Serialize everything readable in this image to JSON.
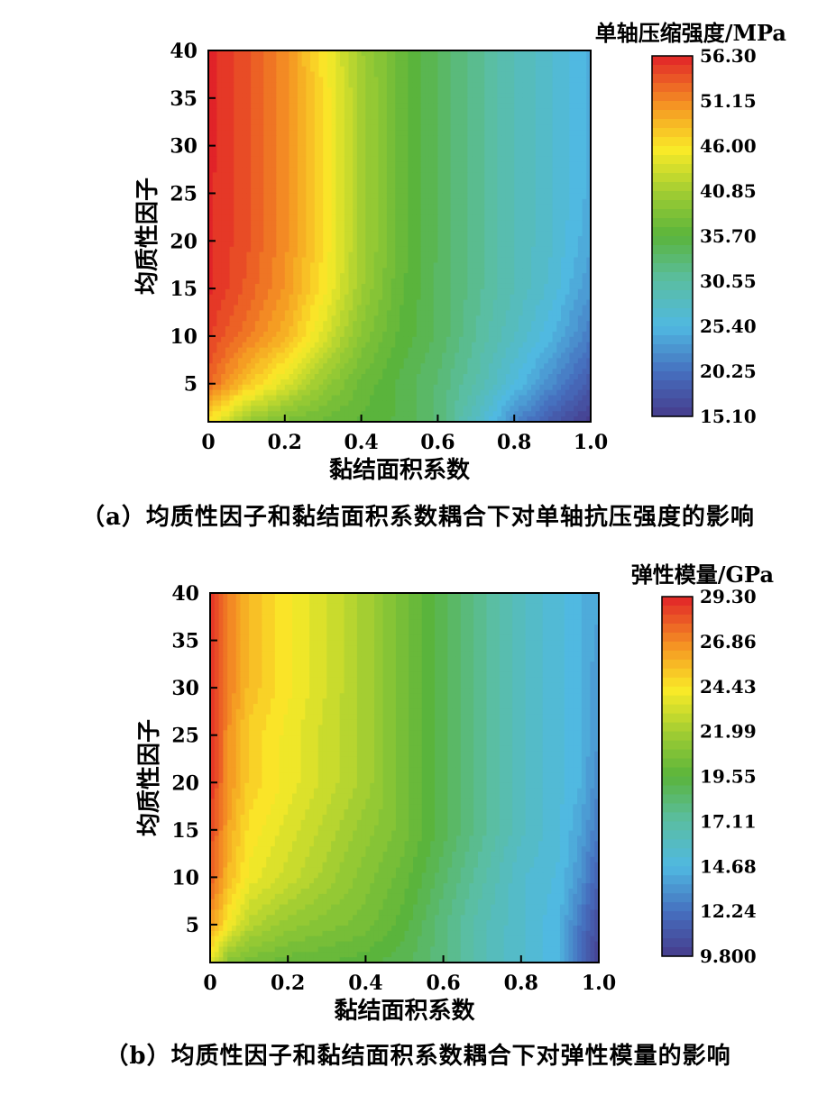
{
  "chart_data": [
    {
      "type": "heatmap",
      "caption": "（a）均质性因子和黏结面积系数耦合下对单轴抗压强度的影响",
      "xlabel": "黏结面积系数",
      "ylabel": "均质性因子",
      "colorbar_title": "单轴压缩强度/MPa",
      "xlim": [
        0,
        1.0
      ],
      "ylim": [
        1,
        40
      ],
      "x_ticks": [
        "0",
        "0.2",
        "0.4",
        "0.6",
        "0.8",
        "1.0"
      ],
      "y_ticks": [
        "5",
        "10",
        "15",
        "20",
        "25",
        "30",
        "35",
        "40"
      ],
      "colorbar_ticks": [
        "56.30",
        "51.15",
        "46.00",
        "40.85",
        "35.70",
        "30.55",
        "25.40",
        "20.25",
        "15.10"
      ],
      "vmin": 15.1,
      "vmax": 56.3,
      "x": [
        0.0,
        0.1,
        0.2,
        0.3,
        0.4,
        0.5,
        0.6,
        0.7,
        0.8,
        0.9,
        1.0
      ],
      "y": [
        1,
        5,
        10,
        15,
        20,
        25,
        30,
        35,
        40
      ],
      "z": [
        [
          46.0,
          40.0,
          38.0,
          37.0,
          36.0,
          35.0,
          33.0,
          28.0,
          22.0,
          18.0,
          15.1
        ],
        [
          53.0,
          48.0,
          44.0,
          40.0,
          37.0,
          35.0,
          33.0,
          30.0,
          26.0,
          22.0,
          18.0
        ],
        [
          55.0,
          52.0,
          49.0,
          44.0,
          39.0,
          36.0,
          34.0,
          31.0,
          28.0,
          25.0,
          21.0
        ],
        [
          56.0,
          53.5,
          50.5,
          46.0,
          40.5,
          36.5,
          34.0,
          31.5,
          29.0,
          26.5,
          23.0
        ],
        [
          56.0,
          54.0,
          51.0,
          46.5,
          41.0,
          37.0,
          34.0,
          31.5,
          29.0,
          27.0,
          24.0
        ],
        [
          56.0,
          54.0,
          51.0,
          46.5,
          41.0,
          37.0,
          34.0,
          31.5,
          29.0,
          27.0,
          24.5
        ],
        [
          56.3,
          54.0,
          51.0,
          46.5,
          41.0,
          37.0,
          34.0,
          31.5,
          29.0,
          27.0,
          24.5
        ],
        [
          56.3,
          54.0,
          51.0,
          46.5,
          41.0,
          37.0,
          34.0,
          31.5,
          29.0,
          27.0,
          24.5
        ],
        [
          56.3,
          54.0,
          51.0,
          46.0,
          40.5,
          37.0,
          34.0,
          31.5,
          29.0,
          27.0,
          24.5
        ]
      ]
    },
    {
      "type": "heatmap",
      "caption": "（b）均质性因子和黏结面积系数耦合下对弹性模量的影响",
      "xlabel": "黏结面积系数",
      "ylabel": "均质性因子",
      "colorbar_title": "弹性模量/GPa",
      "xlim": [
        0,
        1.0
      ],
      "ylim": [
        1,
        40
      ],
      "x_ticks": [
        "0",
        "0.2",
        "0.4",
        "0.6",
        "0.8",
        "1.0"
      ],
      "y_ticks": [
        "5",
        "10",
        "15",
        "20",
        "25",
        "30",
        "35",
        "40"
      ],
      "colorbar_ticks": [
        "29.30",
        "26.86",
        "24.43",
        "21.99",
        "19.55",
        "17.11",
        "14.68",
        "12.24",
        "9.800"
      ],
      "vmin": 9.8,
      "vmax": 29.3,
      "x": [
        0.0,
        0.05,
        0.1,
        0.2,
        0.3,
        0.4,
        0.5,
        0.6,
        0.7,
        0.8,
        0.9,
        0.95,
        1.0
      ],
      "y": [
        1,
        5,
        10,
        15,
        20,
        25,
        30,
        35,
        40
      ],
      "z": [
        [
          23.5,
          21.0,
          20.5,
          20.0,
          19.8,
          19.5,
          19.0,
          18.0,
          16.5,
          15.5,
          14.5,
          12.0,
          10.0
        ],
        [
          26.5,
          24.0,
          22.5,
          21.5,
          21.0,
          20.5,
          19.5,
          18.0,
          16.5,
          15.5,
          14.5,
          12.5,
          10.5
        ],
        [
          28.0,
          25.5,
          24.0,
          23.0,
          22.0,
          21.0,
          20.0,
          18.5,
          17.0,
          15.5,
          14.8,
          13.5,
          11.5
        ],
        [
          28.5,
          26.0,
          24.5,
          23.5,
          22.5,
          21.5,
          20.5,
          19.0,
          17.5,
          16.0,
          15.0,
          14.0,
          12.5
        ],
        [
          29.0,
          26.5,
          25.0,
          24.0,
          23.0,
          22.0,
          20.5,
          19.0,
          17.5,
          16.0,
          15.0,
          14.5,
          13.0
        ],
        [
          29.0,
          26.5,
          25.0,
          24.0,
          23.0,
          22.0,
          20.5,
          19.0,
          17.5,
          16.0,
          15.0,
          14.5,
          13.5
        ],
        [
          29.2,
          27.0,
          25.5,
          24.3,
          23.2,
          22.0,
          20.5,
          19.0,
          17.5,
          16.0,
          15.0,
          14.5,
          13.5
        ],
        [
          29.3,
          27.0,
          25.5,
          24.3,
          23.2,
          22.0,
          20.5,
          19.0,
          17.5,
          16.0,
          15.0,
          14.5,
          13.8
        ],
        [
          29.3,
          27.0,
          25.5,
          24.3,
          23.2,
          22.0,
          20.5,
          19.0,
          17.5,
          16.0,
          15.0,
          14.5,
          14.0
        ]
      ]
    }
  ]
}
